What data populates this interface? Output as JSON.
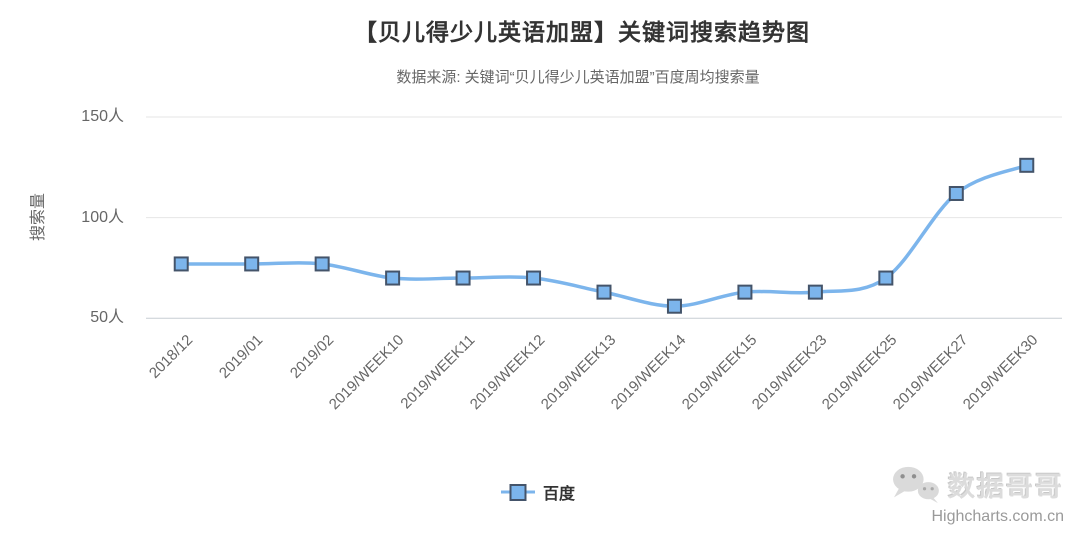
{
  "chart_data": {
    "type": "line",
    "shape": "spline",
    "title": "【贝儿得少儿英语加盟】关键词搜索趋势图",
    "subtitle": "数据来源: 关键词“贝儿得少儿英语加盟”百度周均搜索量",
    "xlabel": "",
    "ylabel": "搜索量",
    "categories": [
      "2018/12",
      "2019/01",
      "2019/02",
      "2019/WEEK10",
      "2019/WEEK11",
      "2019/WEEK12",
      "2019/WEEK13",
      "2019/WEEK14",
      "2019/WEEK15",
      "2019/WEEK23",
      "2019/WEEK25",
      "2019/WEEK27",
      "2019/WEEK30"
    ],
    "series": [
      {
        "name": "百度",
        "values": [
          77,
          77,
          77,
          70,
          70,
          70,
          63,
          56,
          63,
          63,
          70,
          112,
          126
        ]
      }
    ],
    "ylim": [
      50,
      150
    ],
    "yticks": [
      {
        "value": 50,
        "label": "50人"
      },
      {
        "value": 100,
        "label": "100人"
      },
      {
        "value": 150,
        "label": "150人"
      }
    ],
    "grid": "horizontal",
    "legend_position": "bottom-center",
    "x_label_rotation": -45,
    "marker": "square",
    "colors": {
      "line": "#7cb5ec",
      "marker_fill": "#7cb5ec",
      "marker_border": "#44546a",
      "grid": "#e6e6e6",
      "axis": "#c7ced4",
      "title": "#333333",
      "subtitle": "#666666",
      "axis_text": "#666666"
    }
  },
  "legend": {
    "items": [
      {
        "label": "百度"
      }
    ]
  },
  "watermark": {
    "brand": "数据哥哥",
    "credit": "Highcharts.com.cn"
  }
}
